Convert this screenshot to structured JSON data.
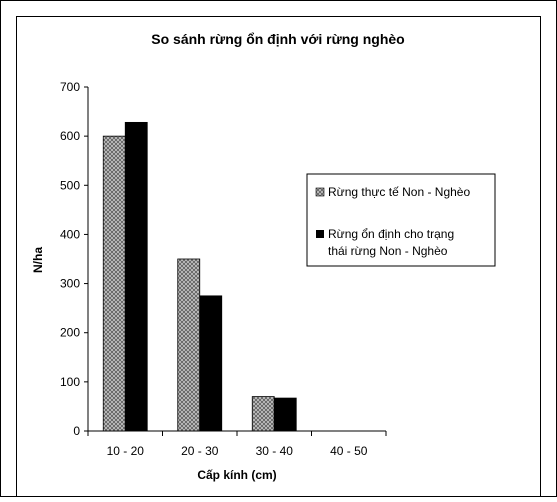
{
  "chart_data": {
    "type": "bar",
    "title": "So sánh rừng ổn định với rừng nghèo",
    "xlabel": "Cấp kính (cm)",
    "ylabel": "N/ha",
    "categories": [
      "10 - 20",
      "20 - 30",
      "30 - 40",
      "40 - 50"
    ],
    "ylim": [
      0,
      700
    ],
    "yticks": [
      0,
      100,
      200,
      300,
      400,
      500,
      600,
      700
    ],
    "grid": false,
    "legend_position": "right",
    "series": [
      {
        "name": "Rừng thực tế Non - Nghèo",
        "values": [
          600,
          350,
          70,
          0
        ],
        "color": "#a0a0a0",
        "pattern": "crosshatch"
      },
      {
        "name": "Rừng ổn định cho trạng thái rừng Non - Nghèo",
        "values": [
          628,
          275,
          67,
          0
        ],
        "color": "#000000",
        "pattern": "solid"
      }
    ]
  }
}
